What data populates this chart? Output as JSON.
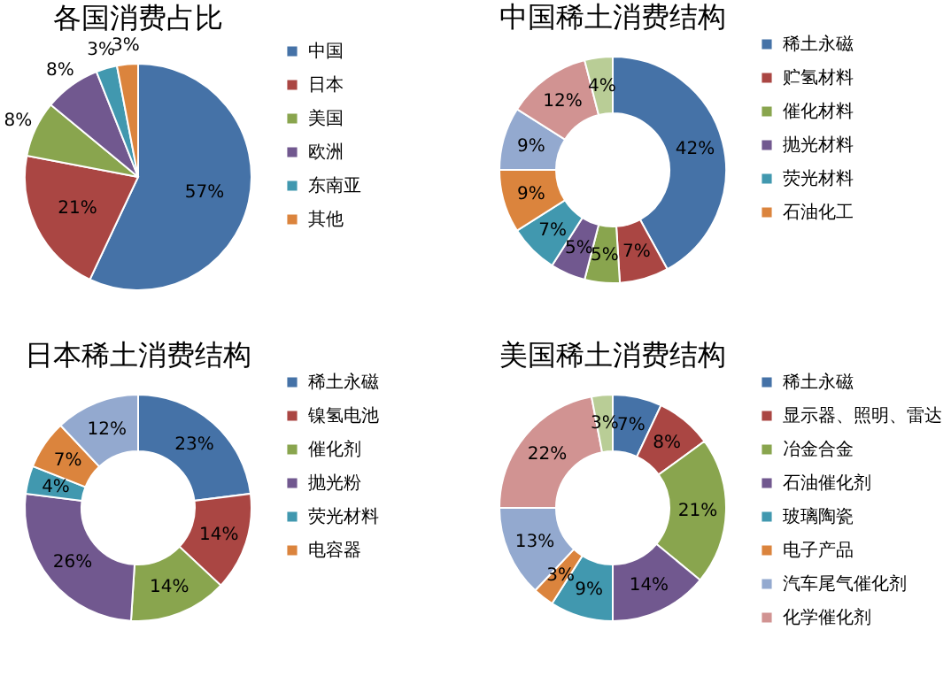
{
  "chart_data": [
    {
      "type": "pie",
      "title": "各国消费占比",
      "categories": [
        "中国",
        "日本",
        "美国",
        "欧洲",
        "东南亚",
        "其他"
      ],
      "values": [
        57,
        21,
        8,
        8,
        3,
        3
      ],
      "value_labels": [
        "57%",
        "21%",
        "8%",
        "8%",
        "3%",
        "3%"
      ],
      "colors": [
        "#4572a7",
        "#aa4643",
        "#89a54e",
        "#71588f",
        "#4198af",
        "#db843d"
      ],
      "legend": "right"
    },
    {
      "type": "donut",
      "title": "中国稀土消费结构",
      "categories": [
        "稀土永磁",
        "贮氢材料",
        "催化材料",
        "抛光材料",
        "荧光材料",
        "石油化工",
        null,
        null,
        null
      ],
      "values": [
        42,
        7,
        5,
        5,
        7,
        9,
        9,
        12,
        4
      ],
      "value_labels": [
        "42%",
        "7%",
        "5%",
        "5%",
        "7%",
        "9%",
        "9%",
        "12%",
        "4%"
      ],
      "colors": [
        "#4572a7",
        "#aa4643",
        "#89a54e",
        "#71588f",
        "#4198af",
        "#db843d",
        "#93a9cf",
        "#d19392",
        "#b9cd96"
      ],
      "legend": "right"
    },
    {
      "type": "donut",
      "title": "日本稀土消费结构",
      "categories": [
        "稀土永磁",
        "镍氢电池",
        "催化剂",
        "抛光粉",
        "荧光材料",
        "电容器",
        null
      ],
      "values": [
        23,
        14,
        14,
        26,
        4,
        7,
        12
      ],
      "value_labels": [
        "23%",
        "14%",
        "14%",
        "26%",
        "4%",
        "7%",
        "12%"
      ],
      "colors": [
        "#4572a7",
        "#aa4643",
        "#89a54e",
        "#71588f",
        "#4198af",
        "#db843d",
        "#93a9cf"
      ],
      "legend": "right"
    },
    {
      "type": "donut",
      "title": "美国稀土消费结构",
      "categories": [
        "稀土永磁",
        "显示器、照明、雷达",
        "冶金合金",
        "石油催化剂",
        "玻璃陶瓷",
        "电子产品",
        "汽车尾气催化剂",
        "化学催化剂",
        null
      ],
      "values": [
        7,
        8,
        21,
        14,
        9,
        3,
        13,
        22,
        3
      ],
      "value_labels": [
        "7%",
        "8%",
        "21%",
        "14%",
        "9%",
        "3%",
        "13%",
        "22%",
        "3%"
      ],
      "colors": [
        "#4572a7",
        "#aa4643",
        "#89a54e",
        "#71588f",
        "#4198af",
        "#db843d",
        "#93a9cf",
        "#d19392",
        "#b9cd96"
      ],
      "legend": "right"
    }
  ]
}
